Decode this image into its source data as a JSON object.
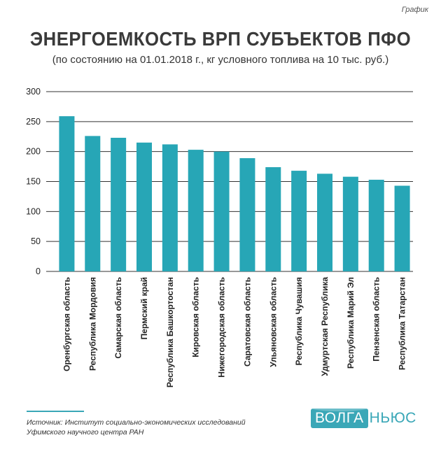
{
  "header": {
    "tag": "График"
  },
  "footer": {
    "source_line1": "Источник: Институт социально-экономических исследований",
    "source_line2": "Уфимского научного центра РАН",
    "logo_part1": "ВОЛГА",
    "logo_part2": "НЬЮС"
  },
  "colors": {
    "bar": "#27a6b6",
    "grid": "#333333",
    "accent": "#3aa7b7"
  },
  "chart_data": {
    "type": "bar",
    "title": "ЭНЕРГОЕМКОСТЬ ВРП СУБЪЕКТОВ ПФО",
    "subtitle": "(по состоянию на 01.01.2018 г., кг условного топлива на 10 тыс. руб.)",
    "categories": [
      "Оренбургская область",
      "Республика Мордовия",
      "Самарская область",
      "Пермский край",
      "Республика Башкортостан",
      "Кировская область",
      "Нижегородская область",
      "Саратовская область",
      "Ульяновская область",
      "Республика Чувашия",
      "Удмуртская Республика",
      "Республика Марий Эл",
      "Пензенская область",
      "Республика Татарстан"
    ],
    "values": [
      259,
      226,
      223,
      215,
      212,
      203,
      200,
      189,
      174,
      168,
      163,
      158,
      153,
      143
    ],
    "yticks": [
      0,
      50,
      100,
      150,
      200,
      250,
      300
    ],
    "ylim": [
      0,
      300
    ],
    "grid": true,
    "legend": "none"
  }
}
